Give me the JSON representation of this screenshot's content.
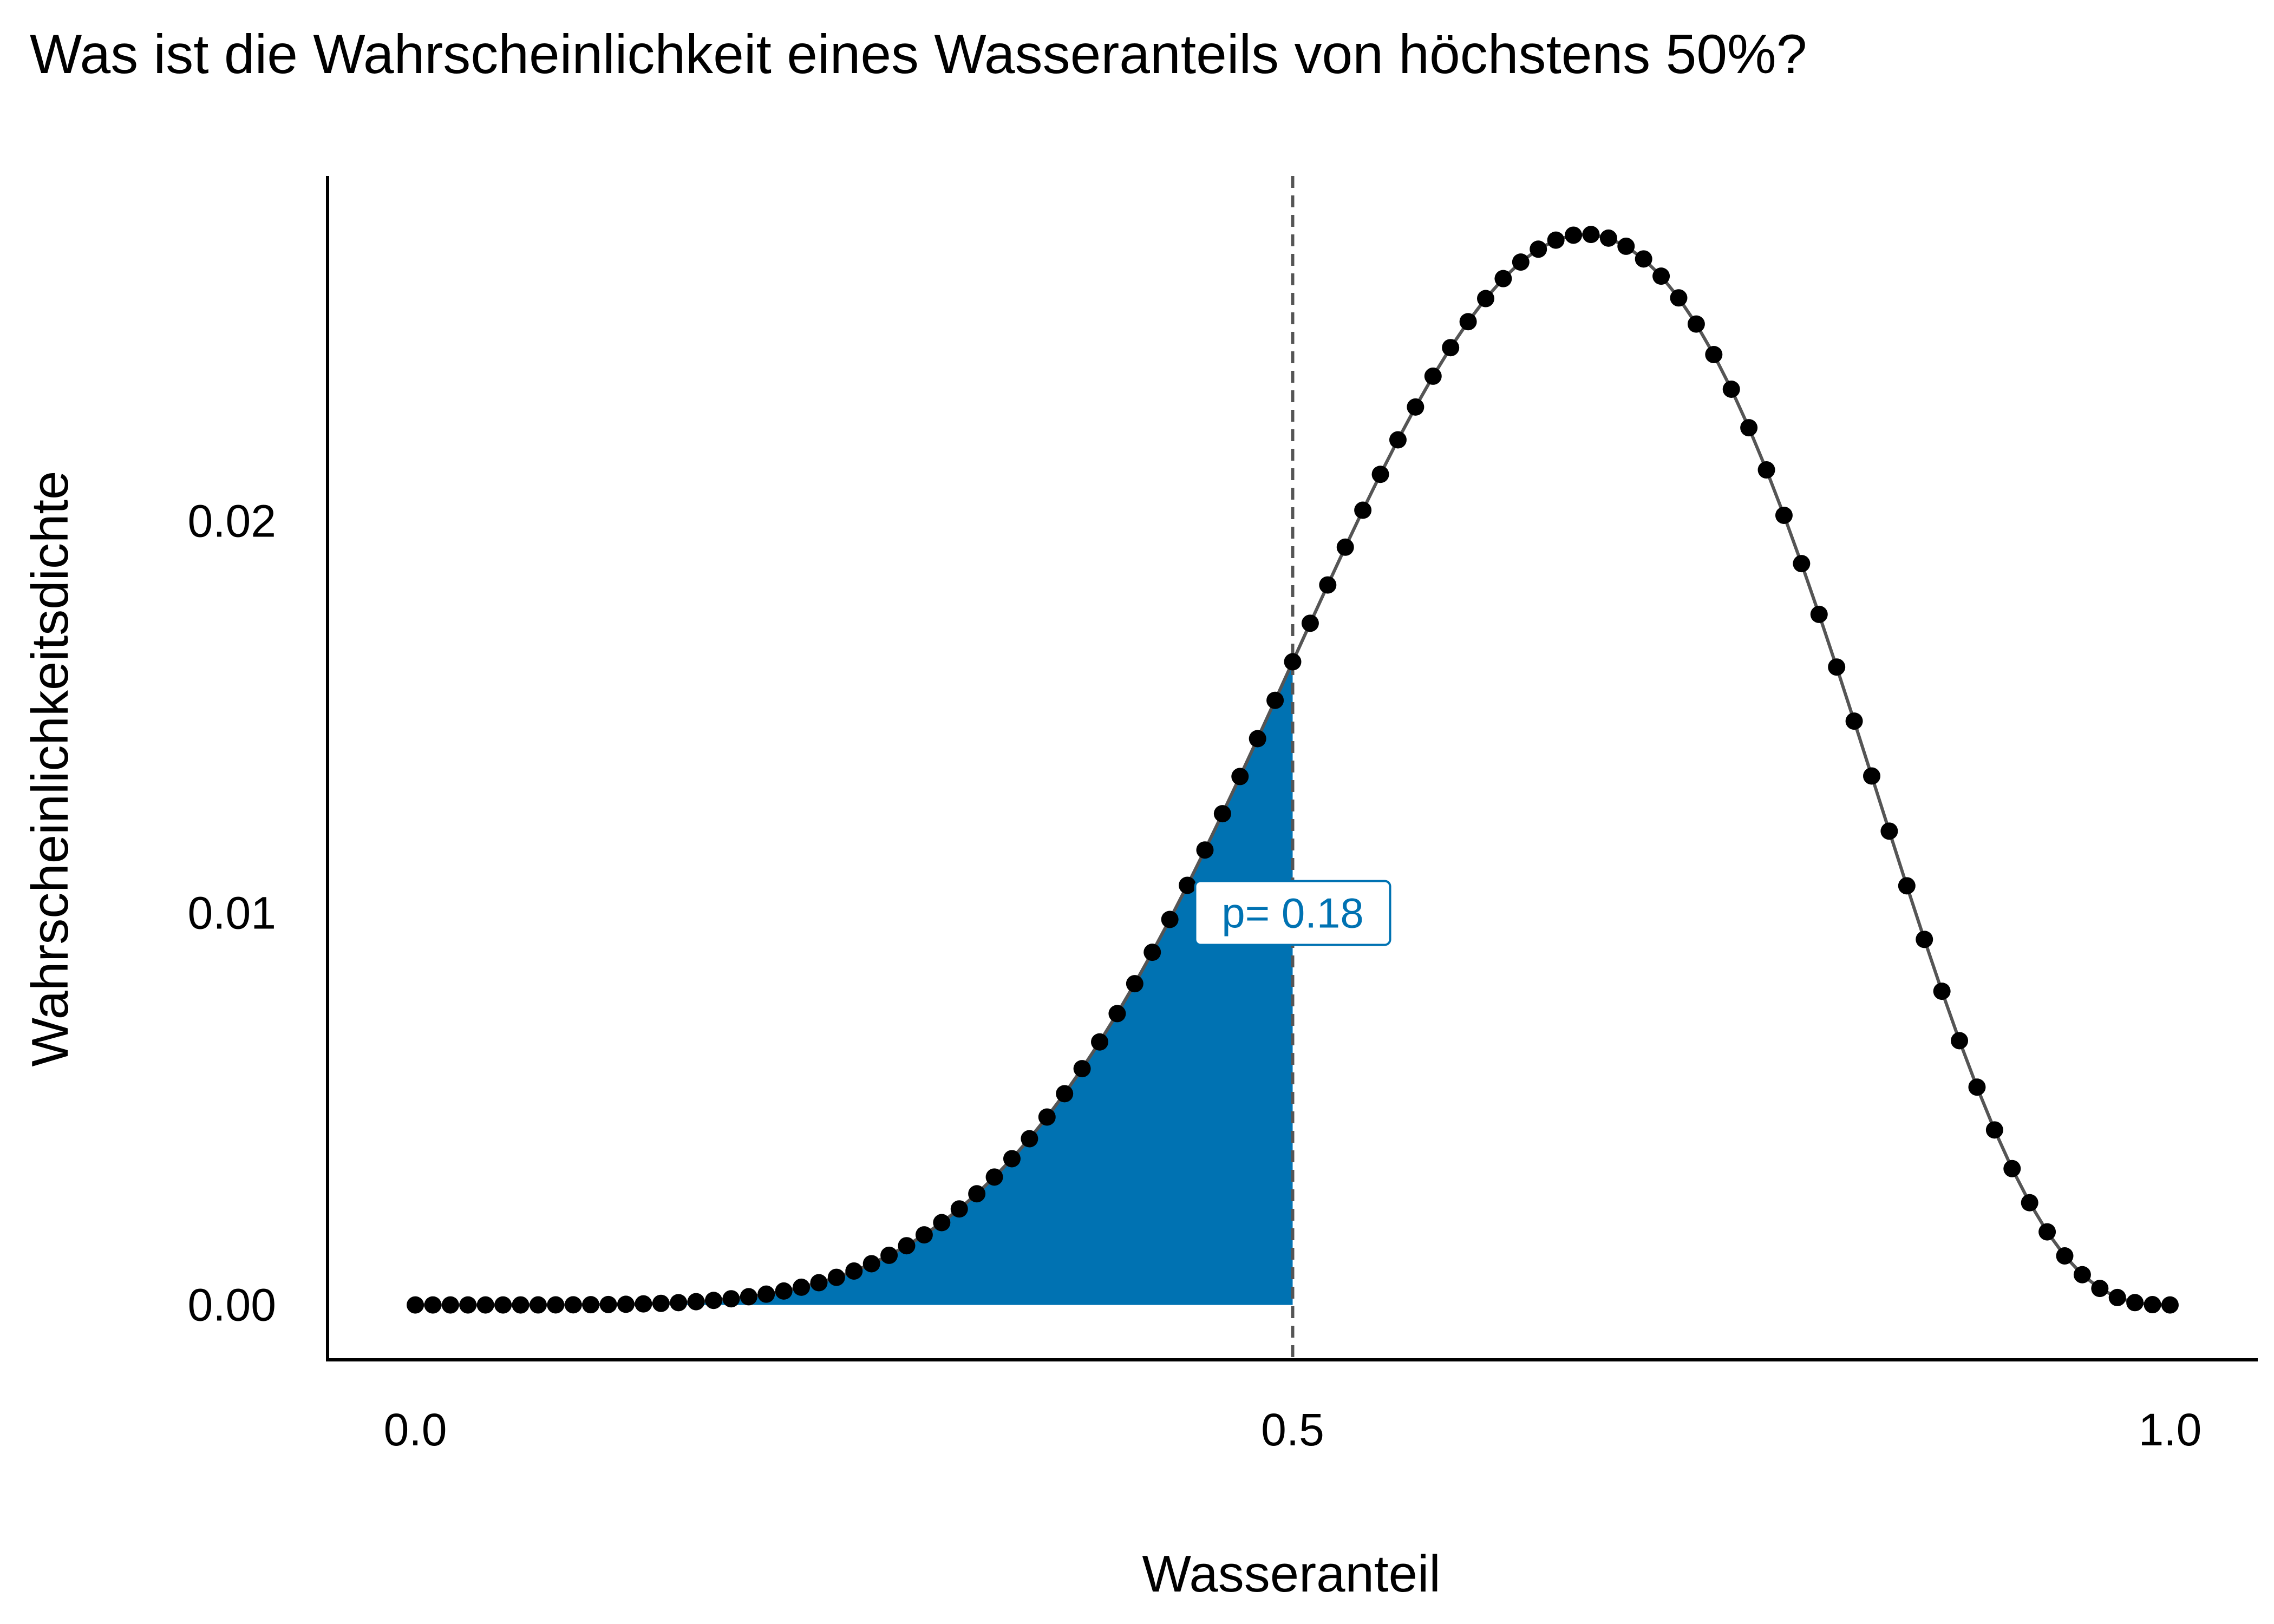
{
  "chart_data": {
    "type": "line",
    "title": "Was ist die Wahrscheinlichkeit eines Wasseranteils von höchstens 50%?",
    "xlabel": "Wasseranteil",
    "ylabel": "Wahrscheinlichkeitsdichte",
    "xlim": [
      -0.05,
      1.05
    ],
    "ylim": [
      -0.0014,
      0.0288
    ],
    "x_ticks": [
      "0.0",
      "0.5",
      "1.0"
    ],
    "x_tick_values": [
      0,
      0.5,
      1
    ],
    "y_ticks": [
      "0.00",
      "0.01",
      "0.02"
    ],
    "y_tick_values": [
      0,
      0.01,
      0.02
    ],
    "distribution": {
      "description_values": "Points at x = 0.00, 0.01, ..., 1.00 with density proportional to x^6 (1-x)^3, normalized over the grid",
      "a": 6,
      "b": 3,
      "n_points": 101
    },
    "shaded_region": {
      "x_from": 0,
      "x_to": 0.5,
      "color": "#0072B2"
    },
    "threshold": {
      "x": 0.5,
      "style": "dashed",
      "color": "#555555"
    },
    "annotation": {
      "text": "p= 0.18",
      "x": 0.5,
      "y": 0.01,
      "color": "#0072B2"
    },
    "colors": {
      "points": "#000000",
      "line": "#555555",
      "area": "#0072B2"
    },
    "grid": false,
    "legend": "none"
  }
}
